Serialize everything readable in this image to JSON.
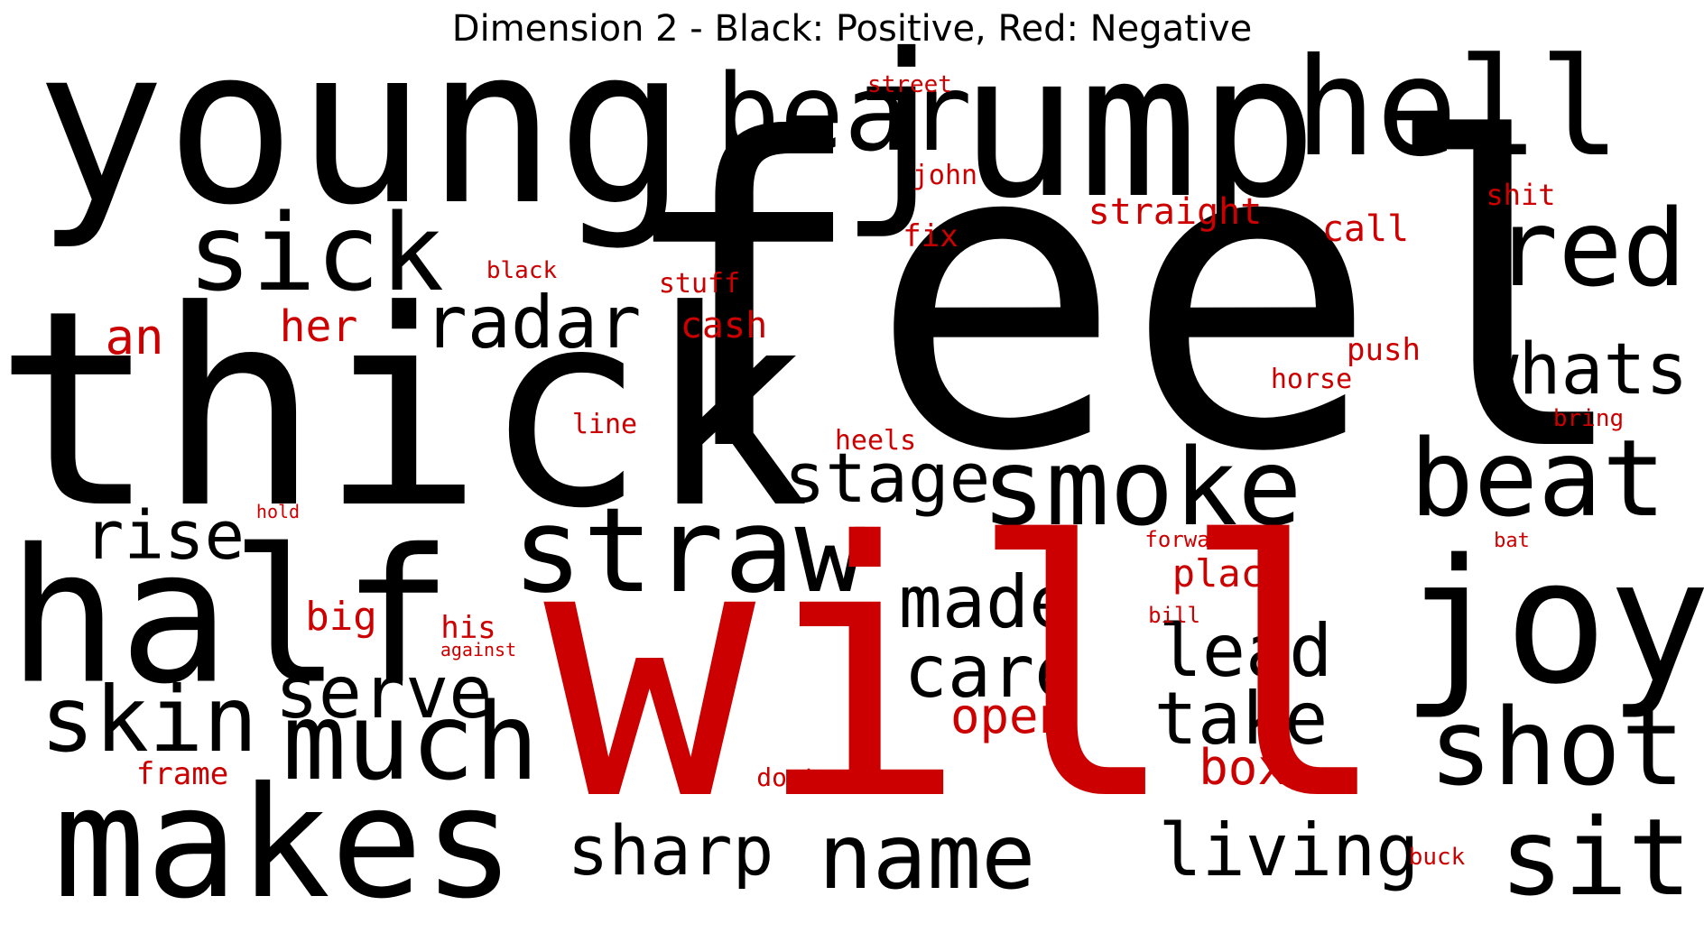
{
  "title": "Dimension 2 - Black: Positive, Red: Negative",
  "colors": {
    "positive": "#000000",
    "negative": "#cc0000"
  },
  "words": [
    {
      "text": "young",
      "polarity": "positive"
    },
    {
      "text": "jump",
      "polarity": "positive"
    },
    {
      "text": "bear",
      "polarity": "positive"
    },
    {
      "text": "hell",
      "polarity": "positive"
    },
    {
      "text": "feel",
      "polarity": "positive"
    },
    {
      "text": "red",
      "polarity": "positive"
    },
    {
      "text": "sick",
      "polarity": "positive"
    },
    {
      "text": "thick",
      "polarity": "positive"
    },
    {
      "text": "radar",
      "polarity": "positive"
    },
    {
      "text": "whats",
      "polarity": "positive"
    },
    {
      "text": "beat",
      "polarity": "positive"
    },
    {
      "text": "smoke",
      "polarity": "positive"
    },
    {
      "text": "stage",
      "polarity": "positive"
    },
    {
      "text": "straw",
      "polarity": "positive"
    },
    {
      "text": "rise",
      "polarity": "positive"
    },
    {
      "text": "half",
      "polarity": "positive"
    },
    {
      "text": "joy",
      "polarity": "positive"
    },
    {
      "text": "made",
      "polarity": "positive"
    },
    {
      "text": "care",
      "polarity": "positive"
    },
    {
      "text": "lead",
      "polarity": "positive"
    },
    {
      "text": "take",
      "polarity": "positive"
    },
    {
      "text": "serve",
      "polarity": "positive"
    },
    {
      "text": "skin",
      "polarity": "positive"
    },
    {
      "text": "much",
      "polarity": "positive"
    },
    {
      "text": "shot",
      "polarity": "positive"
    },
    {
      "text": "makes",
      "polarity": "positive"
    },
    {
      "text": "sharp",
      "polarity": "positive"
    },
    {
      "text": "name",
      "polarity": "positive"
    },
    {
      "text": "living",
      "polarity": "positive"
    },
    {
      "text": "sit",
      "polarity": "positive"
    },
    {
      "text": "will",
      "polarity": "negative"
    },
    {
      "text": "street",
      "polarity": "negative"
    },
    {
      "text": "john",
      "polarity": "negative"
    },
    {
      "text": "straight",
      "polarity": "negative"
    },
    {
      "text": "shit",
      "polarity": "negative"
    },
    {
      "text": "call",
      "polarity": "negative"
    },
    {
      "text": "fix",
      "polarity": "negative"
    },
    {
      "text": "black",
      "polarity": "negative"
    },
    {
      "text": "stuff",
      "polarity": "negative"
    },
    {
      "text": "an",
      "polarity": "negative"
    },
    {
      "text": "her",
      "polarity": "negative"
    },
    {
      "text": "cash",
      "polarity": "negative"
    },
    {
      "text": "push",
      "polarity": "negative"
    },
    {
      "text": "horse",
      "polarity": "negative"
    },
    {
      "text": "line",
      "polarity": "negative"
    },
    {
      "text": "bring",
      "polarity": "negative"
    },
    {
      "text": "heels",
      "polarity": "negative"
    },
    {
      "text": "hold",
      "polarity": "negative"
    },
    {
      "text": "forward",
      "polarity": "negative"
    },
    {
      "text": "bat",
      "polarity": "negative"
    },
    {
      "text": "place",
      "polarity": "negative"
    },
    {
      "text": "big",
      "polarity": "negative"
    },
    {
      "text": "bill",
      "polarity": "negative"
    },
    {
      "text": "his",
      "polarity": "negative"
    },
    {
      "text": "against",
      "polarity": "negative"
    },
    {
      "text": "open",
      "polarity": "negative"
    },
    {
      "text": "box",
      "polarity": "negative"
    },
    {
      "text": "frame",
      "polarity": "negative"
    },
    {
      "text": "dont",
      "polarity": "negative"
    },
    {
      "text": "buck",
      "polarity": "negative"
    }
  ]
}
